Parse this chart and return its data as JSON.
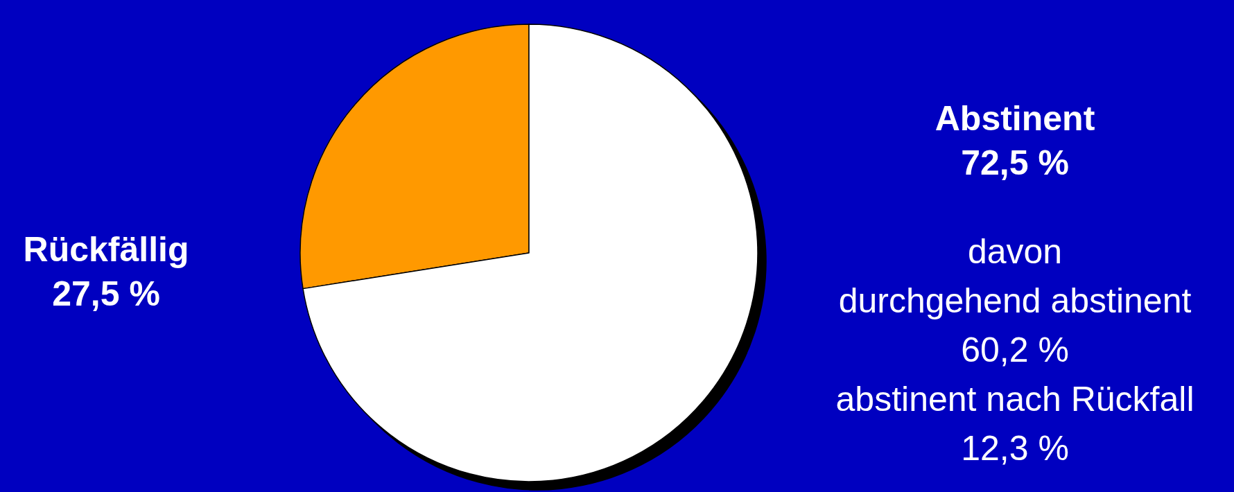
{
  "chart_data": {
    "type": "pie",
    "categories": [
      "Rückfällig",
      "Abstinent"
    ],
    "values": [
      27.5,
      72.5
    ],
    "colors": [
      "#ff9900",
      "#ffffff"
    ],
    "value_labels": [
      "27,5 %",
      "72,5 %"
    ],
    "annotations": [
      "davon",
      "durchgehend abstinent",
      "60,2 %",
      "abstinent nach Rückfall",
      "12,3 %"
    ]
  }
}
